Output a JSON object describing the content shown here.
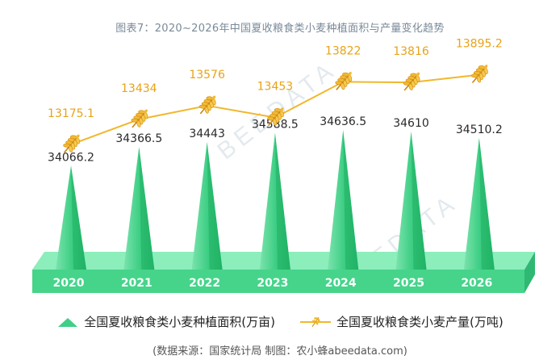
{
  "title": "图表7：2020~2026年中国夏收粮食类小麦种植面积与产量变化趋势",
  "watermark": "BEEDATA",
  "chart_data": {
    "type": "bar",
    "categories": [
      "2020",
      "2021",
      "2022",
      "2023",
      "2024",
      "2025",
      "2026"
    ],
    "series": [
      {
        "name": "全国夏收粮食类小麦种植面积(万亩)",
        "type": "bar",
        "shape": "cone",
        "color": "#3fcf85",
        "values": [
          34066.2,
          34366.5,
          34443,
          34588.5,
          34636.5,
          34610,
          34510.2
        ],
        "labels": [
          "34066.2",
          "34366.5",
          "34443",
          "34588.5",
          "34636.5",
          "34610",
          "34510.2"
        ]
      },
      {
        "name": "全国夏收粮食类小麦产量(万吨)",
        "type": "line",
        "marker": "wheat-icon",
        "color": "#f0b82d",
        "label_color": "#e8a317",
        "values": [
          13175.1,
          13434,
          13576,
          13453,
          13822,
          13816,
          13895.2
        ],
        "labels": [
          "13175.1",
          "13434",
          "13576",
          "13453",
          "13822",
          "13816",
          "13895.2"
        ]
      }
    ],
    "grid": false,
    "legend_position": "bottom"
  },
  "legend": {
    "area_label": "全国夏收粮食类小麦种植面积(万亩)",
    "output_label": "全国夏收粮食类小麦产量(万吨)"
  },
  "source": "(数据来源：国家统计局   制图：农小蜂abeedata.com)"
}
